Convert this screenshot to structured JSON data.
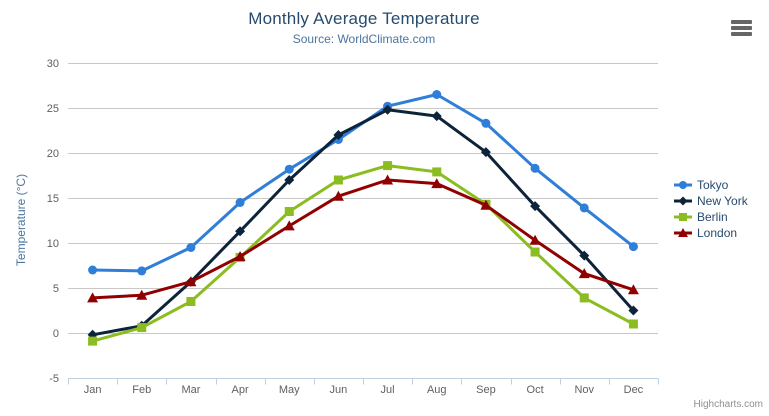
{
  "chart_data": {
    "type": "line",
    "title": "Monthly Average Temperature",
    "subtitle": "Source: WorldClimate.com",
    "xlabel": "",
    "ylabel": "Temperature (°C)",
    "categories": [
      "Jan",
      "Feb",
      "Mar",
      "Apr",
      "May",
      "Jun",
      "Jul",
      "Aug",
      "Sep",
      "Oct",
      "Nov",
      "Dec"
    ],
    "ylim": [
      -5,
      30
    ],
    "ytick_step": 5,
    "grid": true,
    "legend_position": "right",
    "series": [
      {
        "name": "Tokyo",
        "color": "#2f7ed8",
        "marker": "circle",
        "values": [
          7.0,
          6.9,
          9.5,
          14.5,
          18.2,
          21.5,
          25.2,
          26.5,
          23.3,
          18.3,
          13.9,
          9.6
        ]
      },
      {
        "name": "New York",
        "color": "#0d233a",
        "marker": "diamond",
        "values": [
          -0.2,
          0.8,
          5.7,
          11.3,
          17.0,
          22.0,
          24.8,
          24.1,
          20.1,
          14.1,
          8.6,
          2.5
        ]
      },
      {
        "name": "Berlin",
        "color": "#8bbc21",
        "marker": "square",
        "values": [
          -0.9,
          0.6,
          3.5,
          8.4,
          13.5,
          17.0,
          18.6,
          17.9,
          14.3,
          9.0,
          3.9,
          1.0
        ]
      },
      {
        "name": "London",
        "color": "#910000",
        "marker": "triangle",
        "values": [
          3.9,
          4.2,
          5.7,
          8.5,
          11.9,
          15.2,
          17.0,
          16.6,
          14.2,
          10.3,
          6.6,
          4.8
        ]
      }
    ],
    "credits": "Highcharts.com"
  },
  "colors": {
    "background": "#ffffff",
    "title": "#274b6d",
    "subtitle": "#4d759e",
    "axis_title": "#4d759e",
    "tick_label": "#606060",
    "gridline": "#c8c8c8",
    "axis_line": "#c0d0e0",
    "legend_text": "#274b6d",
    "credits": "#909090",
    "menu_icon": "#666666"
  },
  "icons": {
    "context_menu": "hamburger-icon"
  }
}
